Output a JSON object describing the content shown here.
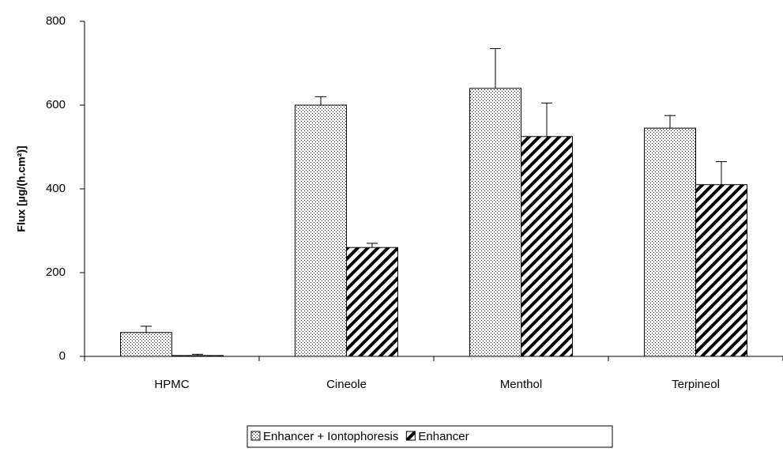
{
  "chart_data": {
    "type": "bar",
    "y_label": "Flux [µg/(h.cm²)]",
    "categories": [
      "HPMC",
      "Cineole",
      "Menthol",
      "Terpineol"
    ],
    "series": [
      {
        "name": "Enhancer + Iontophoresis",
        "color": "#000000",
        "pattern": "dots",
        "values": [
          57,
          600,
          640,
          545
        ],
        "errors": [
          15,
          20,
          95,
          30
        ]
      },
      {
        "name": "Enhancer",
        "color": "#000000",
        "pattern": "hatch",
        "values": [
          2,
          260,
          525,
          410
        ],
        "errors": [
          3,
          10,
          80,
          55
        ]
      }
    ],
    "ylim": [
      0,
      800
    ],
    "yticks": [
      0,
      200,
      400,
      600,
      800
    ],
    "grid": false,
    "legend": "bottom"
  }
}
